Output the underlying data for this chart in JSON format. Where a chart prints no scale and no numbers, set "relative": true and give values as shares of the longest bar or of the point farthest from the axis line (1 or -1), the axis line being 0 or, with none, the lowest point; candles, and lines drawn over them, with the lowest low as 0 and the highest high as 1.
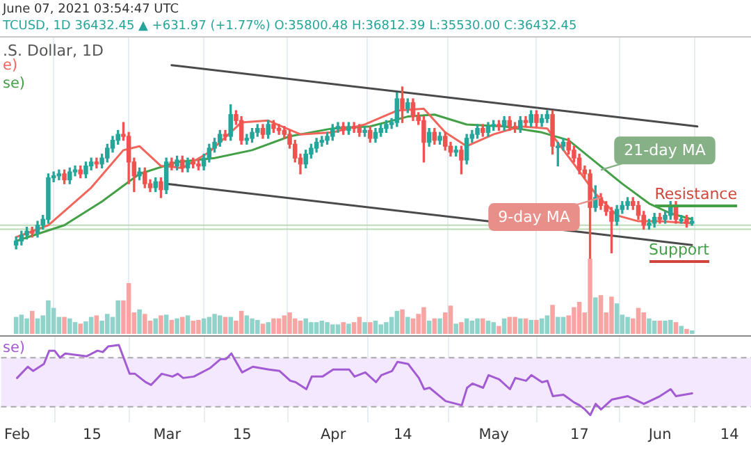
{
  "chart_data": [
    {
      "type": "candlestick",
      "title": "June 07, 2021 03:54:47 UTC",
      "subtitle": "TCUSD, 1D  36432.45 ▲ +631.97 (+1.77%) O:35800.48 H:36812.39 L:35530.00 C:36432.45",
      "relative": true,
      "legend": "top left",
      "grid": "x",
      "tick_labels": false,
      "marker": "none",
      "annotations": [
        ".S. Dollar, 1D",
        "Resistance",
        "Support",
        {
          "text": "9-day MA",
          "x": "2021-05-21",
          "y": 0.44
        },
        {
          "text": "21-day MA",
          "x": "2021-05-21",
          "y": 0.58
        }
      ],
      "xlim": [
        "2021-01-29",
        "2021-06-18"
      ],
      "xticks": [
        {
          "value": "2021-02-01",
          "label": null
        },
        {
          "value": "2021-02-15",
          "label": null
        },
        {
          "value": "2021-03-01",
          "label": null
        },
        {
          "value": "2021-03-15",
          "label": null
        },
        {
          "value": "2021-04-01",
          "label": null
        },
        {
          "value": "2021-04-14",
          "label": null
        },
        {
          "value": "2021-05-01",
          "label": null
        },
        {
          "value": "2021-05-17",
          "label": null
        },
        {
          "value": "2021-06-01",
          "label": null
        },
        {
          "value": "2021-06-14",
          "label": null
        }
      ],
      "x": [
        "2021-02-01",
        "2021-02-02",
        "2021-02-03",
        "2021-02-04",
        "2021-02-05",
        "2021-02-06",
        "2021-02-07",
        "2021-02-08",
        "2021-02-09",
        "2021-02-10",
        "2021-02-11",
        "2021-02-12",
        "2021-02-13",
        "2021-02-14",
        "2021-02-15",
        "2021-02-16",
        "2021-02-17",
        "2021-02-18",
        "2021-02-19",
        "2021-02-20",
        "2021-02-21",
        "2021-02-22",
        "2021-02-23",
        "2021-02-24",
        "2021-02-25",
        "2021-02-26",
        "2021-02-27",
        "2021-02-28",
        "2021-03-01",
        "2021-03-02",
        "2021-03-03",
        "2021-03-04",
        "2021-03-05",
        "2021-03-06",
        "2021-03-07",
        "2021-03-08",
        "2021-03-09",
        "2021-03-10",
        "2021-03-11",
        "2021-03-12",
        "2021-03-13",
        "2021-03-14",
        "2021-03-15",
        "2021-03-16",
        "2021-03-17",
        "2021-03-18",
        "2021-03-19",
        "2021-03-20",
        "2021-03-21",
        "2021-03-22",
        "2021-03-23",
        "2021-03-24",
        "2021-03-25",
        "2021-03-26",
        "2021-03-27",
        "2021-03-28",
        "2021-03-29",
        "2021-03-30",
        "2021-03-31",
        "2021-04-01",
        "2021-04-02",
        "2021-04-03",
        "2021-04-04",
        "2021-04-05",
        "2021-04-06",
        "2021-04-07",
        "2021-04-08",
        "2021-04-09",
        "2021-04-10",
        "2021-04-11",
        "2021-04-12",
        "2021-04-13",
        "2021-04-14",
        "2021-04-15",
        "2021-04-16",
        "2021-04-17",
        "2021-04-18",
        "2021-04-19",
        "2021-04-20",
        "2021-04-21",
        "2021-04-22",
        "2021-04-23",
        "2021-04-24",
        "2021-04-25",
        "2021-04-26",
        "2021-04-27",
        "2021-04-28",
        "2021-04-29",
        "2021-04-30",
        "2021-05-01",
        "2021-05-02",
        "2021-05-03",
        "2021-05-04",
        "2021-05-05",
        "2021-05-06",
        "2021-05-07",
        "2021-05-08",
        "2021-05-09",
        "2021-05-10",
        "2021-05-11",
        "2021-05-12",
        "2021-05-13",
        "2021-05-14",
        "2021-05-15",
        "2021-05-16",
        "2021-05-17",
        "2021-05-18",
        "2021-05-19",
        "2021-05-20",
        "2021-05-21",
        "2021-05-22",
        "2021-05-23",
        "2021-05-24",
        "2021-05-25",
        "2021-05-26",
        "2021-05-27",
        "2021-05-28",
        "2021-05-29",
        "2021-05-30",
        "2021-05-31",
        "2021-06-01",
        "2021-06-02",
        "2021-06-03",
        "2021-06-04",
        "2021-06-05",
        "2021-06-06",
        "2021-06-07"
      ],
      "ohlc": [
        [
          0.2,
          0.24,
          0.18,
          0.22
        ],
        [
          0.22,
          0.27,
          0.2,
          0.25
        ],
        [
          0.25,
          0.29,
          0.23,
          0.27
        ],
        [
          0.27,
          0.29,
          0.24,
          0.26
        ],
        [
          0.26,
          0.32,
          0.24,
          0.3
        ],
        [
          0.3,
          0.35,
          0.28,
          0.33
        ],
        [
          0.33,
          0.56,
          0.31,
          0.54
        ],
        [
          0.54,
          0.57,
          0.52,
          0.55
        ],
        [
          0.55,
          0.58,
          0.53,
          0.56
        ],
        [
          0.56,
          0.58,
          0.51,
          0.53
        ],
        [
          0.53,
          0.59,
          0.51,
          0.57
        ],
        [
          0.57,
          0.6,
          0.55,
          0.58
        ],
        [
          0.58,
          0.6,
          0.54,
          0.56
        ],
        [
          0.56,
          0.62,
          0.54,
          0.6
        ],
        [
          0.6,
          0.64,
          0.58,
          0.62
        ],
        [
          0.62,
          0.64,
          0.59,
          0.61
        ],
        [
          0.61,
          0.66,
          0.59,
          0.64
        ],
        [
          0.64,
          0.71,
          0.62,
          0.69
        ],
        [
          0.69,
          0.75,
          0.67,
          0.73
        ],
        [
          0.73,
          0.78,
          0.71,
          0.76
        ],
        [
          0.76,
          0.82,
          0.73,
          0.75
        ],
        [
          0.75,
          0.77,
          0.51,
          0.62
        ],
        [
          0.62,
          0.64,
          0.47,
          0.55
        ],
        [
          0.55,
          0.59,
          0.53,
          0.57
        ],
        [
          0.57,
          0.59,
          0.49,
          0.51
        ],
        [
          0.51,
          0.53,
          0.47,
          0.49
        ],
        [
          0.49,
          0.54,
          0.47,
          0.52
        ],
        [
          0.52,
          0.54,
          0.44,
          0.48
        ],
        [
          0.48,
          0.64,
          0.46,
          0.62
        ],
        [
          0.62,
          0.64,
          0.58,
          0.6
        ],
        [
          0.6,
          0.65,
          0.58,
          0.63
        ],
        [
          0.63,
          0.65,
          0.57,
          0.59
        ],
        [
          0.59,
          0.64,
          0.57,
          0.62
        ],
        [
          0.62,
          0.64,
          0.59,
          0.61
        ],
        [
          0.61,
          0.63,
          0.58,
          0.6
        ],
        [
          0.6,
          0.66,
          0.58,
          0.64
        ],
        [
          0.64,
          0.71,
          0.62,
          0.69
        ],
        [
          0.69,
          0.74,
          0.67,
          0.72
        ],
        [
          0.72,
          0.78,
          0.7,
          0.76
        ],
        [
          0.76,
          0.78,
          0.73,
          0.75
        ],
        [
          0.75,
          0.91,
          0.73,
          0.86
        ],
        [
          0.86,
          0.88,
          0.81,
          0.83
        ],
        [
          0.83,
          0.85,
          0.71,
          0.73
        ],
        [
          0.73,
          0.76,
          0.71,
          0.74
        ],
        [
          0.74,
          0.79,
          0.72,
          0.77
        ],
        [
          0.77,
          0.81,
          0.75,
          0.79
        ],
        [
          0.79,
          0.81,
          0.74,
          0.76
        ],
        [
          0.76,
          0.83,
          0.74,
          0.81
        ],
        [
          0.81,
          0.83,
          0.77,
          0.79
        ],
        [
          0.79,
          0.81,
          0.76,
          0.78
        ],
        [
          0.78,
          0.8,
          0.74,
          0.76
        ],
        [
          0.76,
          0.78,
          0.69,
          0.71
        ],
        [
          0.71,
          0.73,
          0.62,
          0.64
        ],
        [
          0.64,
          0.66,
          0.56,
          0.61
        ],
        [
          0.61,
          0.68,
          0.59,
          0.66
        ],
        [
          0.66,
          0.71,
          0.64,
          0.69
        ],
        [
          0.69,
          0.74,
          0.67,
          0.72
        ],
        [
          0.72,
          0.75,
          0.7,
          0.73
        ],
        [
          0.73,
          0.77,
          0.71,
          0.75
        ],
        [
          0.75,
          0.81,
          0.73,
          0.79
        ],
        [
          0.79,
          0.82,
          0.77,
          0.8
        ],
        [
          0.8,
          0.82,
          0.76,
          0.78
        ],
        [
          0.78,
          0.82,
          0.76,
          0.8
        ],
        [
          0.8,
          0.82,
          0.77,
          0.79
        ],
        [
          0.79,
          0.81,
          0.75,
          0.77
        ],
        [
          0.77,
          0.8,
          0.75,
          0.78
        ],
        [
          0.78,
          0.8,
          0.72,
          0.74
        ],
        [
          0.74,
          0.79,
          0.72,
          0.77
        ],
        [
          0.77,
          0.81,
          0.75,
          0.79
        ],
        [
          0.79,
          0.83,
          0.77,
          0.81
        ],
        [
          0.81,
          0.84,
          0.79,
          0.82
        ],
        [
          0.82,
          0.97,
          0.8,
          0.94
        ],
        [
          0.94,
          1.0,
          0.82,
          0.89
        ],
        [
          0.89,
          0.94,
          0.87,
          0.92
        ],
        [
          0.92,
          0.94,
          0.83,
          0.85
        ],
        [
          0.85,
          0.87,
          0.81,
          0.83
        ],
        [
          0.83,
          0.85,
          0.62,
          0.72
        ],
        [
          0.72,
          0.79,
          0.7,
          0.77
        ],
        [
          0.77,
          0.79,
          0.71,
          0.73
        ],
        [
          0.73,
          0.77,
          0.71,
          0.75
        ],
        [
          0.75,
          0.77,
          0.68,
          0.7
        ],
        [
          0.7,
          0.72,
          0.65,
          0.67
        ],
        [
          0.67,
          0.7,
          0.65,
          0.68
        ],
        [
          0.68,
          0.7,
          0.56,
          0.63
        ],
        [
          0.63,
          0.76,
          0.61,
          0.74
        ],
        [
          0.74,
          0.78,
          0.72,
          0.76
        ],
        [
          0.76,
          0.81,
          0.74,
          0.79
        ],
        [
          0.79,
          0.81,
          0.75,
          0.77
        ],
        [
          0.77,
          0.82,
          0.75,
          0.8
        ],
        [
          0.8,
          0.83,
          0.78,
          0.81
        ],
        [
          0.81,
          0.83,
          0.78,
          0.8
        ],
        [
          0.8,
          0.85,
          0.78,
          0.83
        ],
        [
          0.83,
          0.85,
          0.78,
          0.8
        ],
        [
          0.8,
          0.82,
          0.77,
          0.79
        ],
        [
          0.79,
          0.85,
          0.77,
          0.83
        ],
        [
          0.83,
          0.85,
          0.8,
          0.82
        ],
        [
          0.82,
          0.88,
          0.8,
          0.86
        ],
        [
          0.86,
          0.88,
          0.8,
          0.82
        ],
        [
          0.82,
          0.86,
          0.8,
          0.84
        ],
        [
          0.84,
          0.88,
          0.82,
          0.86
        ],
        [
          0.86,
          0.88,
          0.66,
          0.7
        ],
        [
          0.7,
          0.72,
          0.6,
          0.7
        ],
        [
          0.7,
          0.74,
          0.68,
          0.72
        ],
        [
          0.72,
          0.74,
          0.66,
          0.68
        ],
        [
          0.68,
          0.7,
          0.62,
          0.64
        ],
        [
          0.64,
          0.66,
          0.56,
          0.58
        ],
        [
          0.58,
          0.6,
          0.54,
          0.56
        ],
        [
          0.56,
          0.58,
          0,
          0.39
        ],
        [
          0.39,
          0.5,
          0.37,
          0.44
        ],
        [
          0.44,
          0.46,
          0.38,
          0.4
        ],
        [
          0.4,
          0.42,
          0.35,
          0.37
        ],
        [
          0.37,
          0.39,
          0.16,
          0.32
        ],
        [
          0.32,
          0.4,
          0.3,
          0.38
        ],
        [
          0.38,
          0.42,
          0.36,
          0.4
        ],
        [
          0.4,
          0.44,
          0.38,
          0.42
        ],
        [
          0.42,
          0.44,
          0.38,
          0.4
        ],
        [
          0.4,
          0.42,
          0.33,
          0.35
        ],
        [
          0.35,
          0.37,
          0.28,
          0.3
        ],
        [
          0.3,
          0.33,
          0.28,
          0.31
        ],
        [
          0.31,
          0.36,
          0.29,
          0.34
        ],
        [
          0.34,
          0.36,
          0.31,
          0.33
        ],
        [
          0.33,
          0.37,
          0.31,
          0.35
        ],
        [
          0.35,
          0.42,
          0.33,
          0.4
        ],
        [
          0.4,
          0.42,
          0.31,
          0.33
        ],
        [
          0.33,
          0.35,
          0.31,
          0.33
        ],
        [
          0.33,
          0.35,
          0.29,
          0.31
        ],
        [
          0.31,
          0.34,
          0.3,
          0.32
        ]
      ],
      "ref_lines": [
        {
          "axis": "y",
          "value": 0.3,
          "color": "#b9dcb5"
        },
        {
          "axis": "y",
          "value": 0.28,
          "color": "#b9dcb5"
        }
      ],
      "series": [
        {
          "name": "e)",
          "type": "line",
          "color": "#f0665c",
          "x": [
            "2021-02-01",
            "2021-02-07",
            "2021-02-15",
            "2021-02-21",
            "2021-02-24",
            "2021-02-28",
            "2021-03-04",
            "2021-03-09",
            "2021-03-15",
            "2021-03-20",
            "2021-03-26",
            "2021-04-01",
            "2021-04-07",
            "2021-04-13",
            "2021-04-18",
            "2021-04-22",
            "2021-04-26",
            "2021-05-01",
            "2021-05-06",
            "2021-05-11",
            "2021-05-16",
            "2021-05-20",
            "2021-05-24",
            "2021-05-28",
            "2021-06-01",
            "2021-06-07"
          ],
          "values": [
            0.24,
            0.3,
            0.49,
            0.68,
            0.7,
            0.6,
            0.59,
            0.67,
            0.82,
            0.83,
            0.76,
            0.77,
            0.81,
            0.88,
            0.89,
            0.77,
            0.7,
            0.76,
            0.8,
            0.79,
            0.61,
            0.46,
            0.35,
            0.32,
            0.32,
            0.31
          ]
        },
        {
          "name": "se)",
          "type": "line",
          "color": "#43a047",
          "x": [
            "2021-02-01",
            "2021-02-10",
            "2021-02-17",
            "2021-02-24",
            "2021-03-03",
            "2021-03-10",
            "2021-03-17",
            "2021-03-24",
            "2021-04-01",
            "2021-04-08",
            "2021-04-15",
            "2021-04-20",
            "2021-04-26",
            "2021-05-03",
            "2021-05-10",
            "2021-05-15",
            "2021-05-20",
            "2021-05-25",
            "2021-05-30",
            "2021-06-03",
            "2021-06-07"
          ],
          "values": [
            0.22,
            0.3,
            0.42,
            0.56,
            0.62,
            0.64,
            0.68,
            0.75,
            0.79,
            0.8,
            0.85,
            0.86,
            0.81,
            0.8,
            0.77,
            0.73,
            0.62,
            0.51,
            0.41,
            0.36,
            0.33
          ]
        },
        {
          "type": "line",
          "color": "#4a4a4a",
          "x": [
            "2021-03-02",
            "2021-06-08"
          ],
          "values": [
            1.11,
            0.8
          ]
        },
        {
          "type": "line",
          "color": "#4a4a4a",
          "x": [
            "2021-03-01",
            "2021-06-07"
          ],
          "values": [
            0.51,
            0.2
          ]
        }
      ]
    },
    {
      "type": "bar",
      "relative": true,
      "tick_labels": false,
      "xlim": [
        "2021-01-29",
        "2021-06-18"
      ],
      "x": [
        "2021-02-01",
        "2021-02-02",
        "2021-02-03",
        "2021-02-04",
        "2021-02-05",
        "2021-02-06",
        "2021-02-07",
        "2021-02-08",
        "2021-02-09",
        "2021-02-10",
        "2021-02-11",
        "2021-02-12",
        "2021-02-13",
        "2021-02-14",
        "2021-02-15",
        "2021-02-16",
        "2021-02-17",
        "2021-02-18",
        "2021-02-19",
        "2021-02-20",
        "2021-02-21",
        "2021-02-22",
        "2021-02-23",
        "2021-02-24",
        "2021-02-25",
        "2021-02-26",
        "2021-02-27",
        "2021-02-28",
        "2021-03-01",
        "2021-03-02",
        "2021-03-03",
        "2021-03-04",
        "2021-03-05",
        "2021-03-06",
        "2021-03-07",
        "2021-03-08",
        "2021-03-09",
        "2021-03-10",
        "2021-03-11",
        "2021-03-12",
        "2021-03-13",
        "2021-03-14",
        "2021-03-15",
        "2021-03-16",
        "2021-03-17",
        "2021-03-18",
        "2021-03-19",
        "2021-03-20",
        "2021-03-21",
        "2021-03-22",
        "2021-03-23",
        "2021-03-24",
        "2021-03-25",
        "2021-03-26",
        "2021-03-27",
        "2021-03-28",
        "2021-03-29",
        "2021-03-30",
        "2021-03-31",
        "2021-04-01",
        "2021-04-02",
        "2021-04-03",
        "2021-04-04",
        "2021-04-05",
        "2021-04-06",
        "2021-04-07",
        "2021-04-08",
        "2021-04-09",
        "2021-04-10",
        "2021-04-11",
        "2021-04-12",
        "2021-04-13",
        "2021-04-14",
        "2021-04-15",
        "2021-04-16",
        "2021-04-17",
        "2021-04-18",
        "2021-04-19",
        "2021-04-20",
        "2021-04-21",
        "2021-04-22",
        "2021-04-23",
        "2021-04-24",
        "2021-04-25",
        "2021-04-26",
        "2021-04-27",
        "2021-04-28",
        "2021-04-29",
        "2021-04-30",
        "2021-05-01",
        "2021-05-02",
        "2021-05-03",
        "2021-05-04",
        "2021-05-05",
        "2021-05-06",
        "2021-05-07",
        "2021-05-08",
        "2021-05-09",
        "2021-05-10",
        "2021-05-11",
        "2021-05-12",
        "2021-05-13",
        "2021-05-14",
        "2021-05-15",
        "2021-05-16",
        "2021-05-17",
        "2021-05-18",
        "2021-05-19",
        "2021-05-20",
        "2021-05-21",
        "2021-05-22",
        "2021-05-23",
        "2021-05-24",
        "2021-05-25",
        "2021-05-26",
        "2021-05-27",
        "2021-05-28",
        "2021-05-29",
        "2021-05-30",
        "2021-05-31",
        "2021-06-01",
        "2021-06-02",
        "2021-06-03",
        "2021-06-04",
        "2021-06-05",
        "2021-06-06",
        "2021-06-07"
      ],
      "values": [
        0.22,
        0.25,
        0.2,
        0.3,
        0.2,
        0.24,
        0.44,
        0.34,
        0.22,
        0.22,
        0.2,
        0.15,
        0.13,
        0.16,
        0.22,
        0.24,
        0.17,
        0.26,
        0.22,
        0.44,
        0.44,
        0.67,
        0.28,
        0.32,
        0.26,
        0.17,
        0.2,
        0.24,
        0.25,
        0.18,
        0.2,
        0.22,
        0.24,
        0.17,
        0.18,
        0.2,
        0.22,
        0.26,
        0.24,
        0.22,
        0.22,
        0.17,
        0.3,
        0.24,
        0.2,
        0.18,
        0.13,
        0.15,
        0.2,
        0.2,
        0.24,
        0.28,
        0.2,
        0.17,
        0.2,
        0.15,
        0.15,
        0.17,
        0.15,
        0.12,
        0.12,
        0.15,
        0.13,
        0.15,
        0.22,
        0.15,
        0.15,
        0.17,
        0.12,
        0.15,
        0.22,
        0.3,
        0.32,
        0.22,
        0.2,
        0.26,
        0.35,
        0.17,
        0.2,
        0.2,
        0.28,
        0.37,
        0.13,
        0.15,
        0.2,
        0.17,
        0.2,
        0.2,
        0.17,
        0.15,
        0.1,
        0.2,
        0.22,
        0.22,
        0.2,
        0.2,
        0.18,
        0.18,
        0.2,
        0.24,
        0.38,
        0.22,
        0.22,
        0.24,
        0.35,
        0.42,
        0.28,
        1.0,
        0.48,
        0.51,
        0.28,
        0.49,
        0.4,
        0.25,
        0.22,
        0.2,
        0.34,
        0.28,
        0.2,
        0.17,
        0.17,
        0.17,
        0.18,
        0.15,
        0.1,
        0.06,
        0.04
      ],
      "colors": [
        "#8fd3ca",
        "#8fd3ca",
        "#8fd3ca",
        "#f6a5a2",
        "#8fd3ca",
        "#8fd3ca",
        "#8fd3ca",
        "#8fd3ca",
        "#8fd3ca",
        "#f6a5a2",
        "#8fd3ca",
        "#8fd3ca",
        "#f6a5a2",
        "#8fd3ca",
        "#8fd3ca",
        "#f6a5a2",
        "#8fd3ca",
        "#8fd3ca",
        "#8fd3ca",
        "#8fd3ca",
        "#f6a5a2",
        "#f6a5a2",
        "#f6a5a2",
        "#8fd3ca",
        "#f6a5a2",
        "#f6a5a2",
        "#8fd3ca",
        "#f6a5a2",
        "#8fd3ca",
        "#f6a5a2",
        "#8fd3ca",
        "#f6a5a2",
        "#8fd3ca",
        "#f6a5a2",
        "#f6a5a2",
        "#8fd3ca",
        "#8fd3ca",
        "#8fd3ca",
        "#8fd3ca",
        "#f6a5a2",
        "#8fd3ca",
        "#f6a5a2",
        "#f6a5a2",
        "#8fd3ca",
        "#8fd3ca",
        "#8fd3ca",
        "#f6a5a2",
        "#8fd3ca",
        "#f6a5a2",
        "#f6a5a2",
        "#f6a5a2",
        "#f6a5a2",
        "#f6a5a2",
        "#f6a5a2",
        "#8fd3ca",
        "#8fd3ca",
        "#8fd3ca",
        "#8fd3ca",
        "#8fd3ca",
        "#8fd3ca",
        "#8fd3ca",
        "#f6a5a2",
        "#8fd3ca",
        "#f6a5a2",
        "#f6a5a2",
        "#8fd3ca",
        "#f6a5a2",
        "#8fd3ca",
        "#8fd3ca",
        "#8fd3ca",
        "#8fd3ca",
        "#8fd3ca",
        "#f6a5a2",
        "#8fd3ca",
        "#f6a5a2",
        "#f6a5a2",
        "#f6a5a2",
        "#8fd3ca",
        "#f6a5a2",
        "#8fd3ca",
        "#f6a5a2",
        "#f6a5a2",
        "#8fd3ca",
        "#f6a5a2",
        "#8fd3ca",
        "#8fd3ca",
        "#8fd3ca",
        "#f6a5a2",
        "#8fd3ca",
        "#8fd3ca",
        "#f6a5a2",
        "#8fd3ca",
        "#f6a5a2",
        "#f6a5a2",
        "#8fd3ca",
        "#f6a5a2",
        "#8fd3ca",
        "#f6a5a2",
        "#8fd3ca",
        "#8fd3ca",
        "#f6a5a2",
        "#8fd3ca",
        "#8fd3ca",
        "#f6a5a2",
        "#f6a5a2",
        "#f6a5a2",
        "#f6a5a2",
        "#f6a5a2",
        "#8fd3ca",
        "#f6a5a2",
        "#f6a5a2",
        "#f6a5a2",
        "#8fd3ca",
        "#8fd3ca",
        "#8fd3ca",
        "#f6a5a2",
        "#f6a5a2",
        "#f6a5a2",
        "#8fd3ca",
        "#8fd3ca",
        "#f6a5a2",
        "#8fd3ca",
        "#8fd3ca",
        "#f6a5a2",
        "#8fd3ca",
        "#f6a5a2",
        "#8fd3ca"
      ]
    },
    {
      "type": "line",
      "relative": true,
      "legend": "top left",
      "grid": "x",
      "tick_labels": "x",
      "marker": "none",
      "xlim": [
        "2021-01-29",
        "2021-06-18"
      ],
      "xticks": [
        {
          "value": "2021-02-01",
          "label": "Feb"
        },
        {
          "value": "2021-02-15",
          "label": "15"
        },
        {
          "value": "2021-03-01",
          "label": "Mar"
        },
        {
          "value": "2021-03-15",
          "label": "15"
        },
        {
          "value": "2021-04-01",
          "label": "Apr"
        },
        {
          "value": "2021-04-14",
          "label": "14"
        },
        {
          "value": "2021-05-01",
          "label": "May"
        },
        {
          "value": "2021-05-17",
          "label": "17"
        },
        {
          "value": "2021-06-01",
          "label": "Jun"
        },
        {
          "value": "2021-06-14",
          "label": "14"
        }
      ],
      "bands": [
        {
          "axis": "y",
          "from": 0.12,
          "to": 0.82,
          "color": "#f3e8fd"
        }
      ],
      "ref_lines": [
        {
          "axis": "y",
          "value": 0.12,
          "color": "#a9a9a9",
          "line_style": "dashed"
        },
        {
          "axis": "y",
          "value": 0.82,
          "color": "#a9a9a9",
          "line_style": "dashed"
        }
      ],
      "series": [
        {
          "name": "se)",
          "color": "#a35bd3",
          "x": [
            "2021-02-01",
            "2021-02-03",
            "2021-02-04",
            "2021-02-06",
            "2021-02-07",
            "2021-02-08",
            "2021-02-09",
            "2021-02-10",
            "2021-02-12",
            "2021-02-14",
            "2021-02-16",
            "2021-02-17",
            "2021-02-18",
            "2021-02-20",
            "2021-02-22",
            "2021-02-23",
            "2021-02-25",
            "2021-02-26",
            "2021-02-28",
            "2021-03-02",
            "2021-03-03",
            "2021-03-04",
            "2021-03-06",
            "2021-03-09",
            "2021-03-11",
            "2021-03-12",
            "2021-03-13",
            "2021-03-15",
            "2021-03-17",
            "2021-03-20",
            "2021-03-22",
            "2021-03-24",
            "2021-03-25",
            "2021-03-27",
            "2021-03-28",
            "2021-03-30",
            "2021-04-01",
            "2021-04-04",
            "2021-04-05",
            "2021-04-07",
            "2021-04-09",
            "2021-04-10",
            "2021-04-12",
            "2021-04-13",
            "2021-04-15",
            "2021-04-16",
            "2021-04-17",
            "2021-04-18",
            "2021-04-19",
            "2021-04-22",
            "2021-04-25",
            "2021-04-26",
            "2021-04-27",
            "2021-04-29",
            "2021-04-30",
            "2021-05-02",
            "2021-05-04",
            "2021-05-05",
            "2021-05-07",
            "2021-05-08",
            "2021-05-10",
            "2021-05-11",
            "2021-05-12",
            "2021-05-14",
            "2021-05-16",
            "2021-05-17",
            "2021-05-18",
            "2021-05-19",
            "2021-05-20",
            "2021-05-21",
            "2021-05-23",
            "2021-05-26",
            "2021-05-29",
            "2021-06-01",
            "2021-06-03",
            "2021-06-04",
            "2021-06-07"
          ],
          "values": [
            0.53,
            0.69,
            0.63,
            0.73,
            0.92,
            0.92,
            0.82,
            0.88,
            0.86,
            0.84,
            0.92,
            0.9,
            0.98,
            1,
            0.59,
            0.59,
            0.47,
            0.43,
            0.59,
            0.55,
            0.59,
            0.53,
            0.55,
            0.67,
            0.8,
            0.8,
            0.88,
            0.61,
            0.69,
            0.65,
            0.63,
            0.49,
            0.47,
            0.37,
            0.55,
            0.55,
            0.65,
            0.65,
            0.55,
            0.61,
            0.47,
            0.57,
            0.63,
            0.76,
            0.73,
            0.63,
            0.53,
            0.37,
            0.39,
            0.2,
            0.14,
            0.39,
            0.45,
            0.39,
            0.57,
            0.51,
            0.37,
            0.53,
            0.49,
            0.57,
            0.47,
            0.49,
            0.27,
            0.29,
            0.18,
            0.14,
            0.08,
            0,
            0.16,
            0.08,
            0.22,
            0.27,
            0.16,
            0.27,
            0.37,
            0.27,
            0.31
          ]
        }
      ]
    }
  ]
}
